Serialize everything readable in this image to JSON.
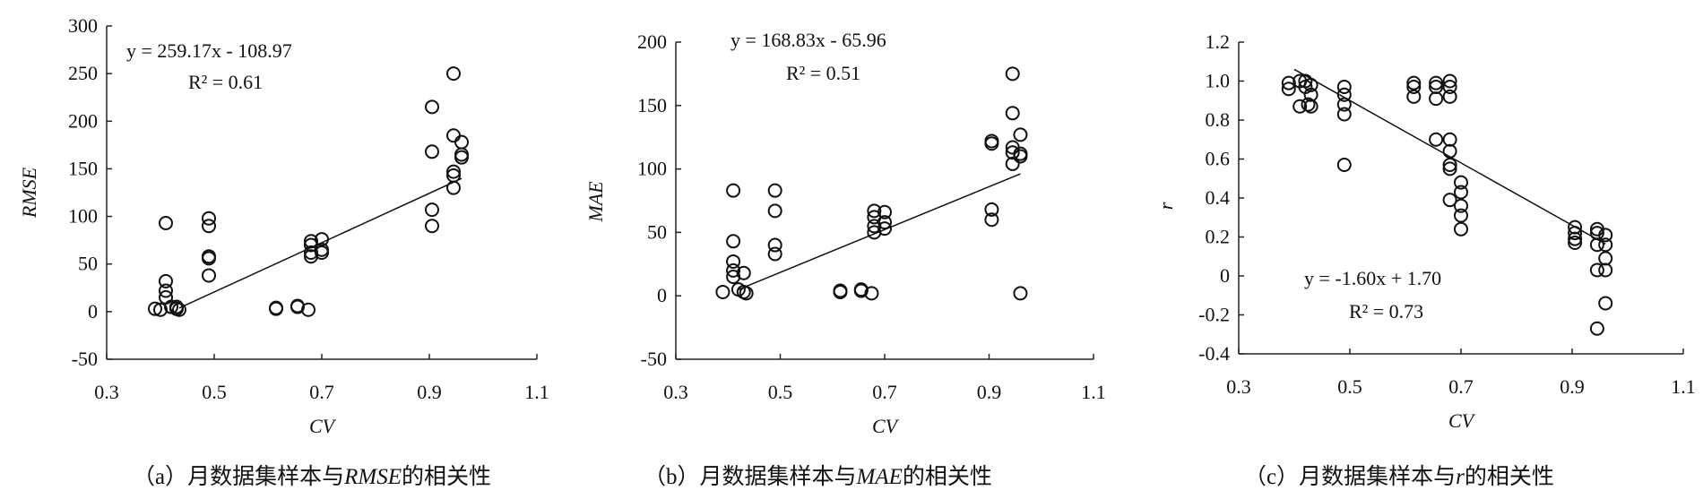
{
  "chart_data": [
    {
      "type": "scatter",
      "caption_prefix": "（a）月数据集样本与",
      "caption_var": "RMSE",
      "caption_suffix": "的相关性",
      "xlabel": "CV",
      "ylabel": "RMSE",
      "xlim": [
        0.3,
        1.1
      ],
      "ylim": [
        -50,
        300
      ],
      "xticks": [
        "0.3",
        "0.5",
        "0.7",
        "0.9",
        "1.1"
      ],
      "yticks": [
        "-50",
        "0",
        "50",
        "100",
        "150",
        "200",
        "250",
        "300"
      ],
      "equation": "y = 259.17x - 108.97",
      "r2": "R² = 0.61",
      "trend": {
        "slope": 259.17,
        "intercept": -108.97,
        "x_range": [
          0.435,
          0.96
        ]
      },
      "points": [
        [
          0.39,
          3
        ],
        [
          0.4,
          2
        ],
        [
          0.41,
          93
        ],
        [
          0.41,
          32
        ],
        [
          0.41,
          22
        ],
        [
          0.41,
          15
        ],
        [
          0.42,
          5
        ],
        [
          0.43,
          3
        ],
        [
          0.43,
          5
        ],
        [
          0.435,
          2
        ],
        [
          0.49,
          98
        ],
        [
          0.49,
          90
        ],
        [
          0.49,
          58
        ],
        [
          0.49,
          56
        ],
        [
          0.49,
          38
        ],
        [
          0.615,
          3
        ],
        [
          0.615,
          4
        ],
        [
          0.655,
          5
        ],
        [
          0.655,
          6
        ],
        [
          0.675,
          2
        ],
        [
          0.68,
          74
        ],
        [
          0.68,
          70
        ],
        [
          0.68,
          62
        ],
        [
          0.68,
          58
        ],
        [
          0.7,
          76
        ],
        [
          0.7,
          65
        ],
        [
          0.7,
          62
        ],
        [
          0.905,
          215
        ],
        [
          0.905,
          168
        ],
        [
          0.905,
          107
        ],
        [
          0.905,
          90
        ],
        [
          0.945,
          250
        ],
        [
          0.945,
          185
        ],
        [
          0.945,
          147
        ],
        [
          0.945,
          143
        ],
        [
          0.945,
          130
        ],
        [
          0.96,
          178
        ],
        [
          0.96,
          165
        ],
        [
          0.96,
          162
        ]
      ]
    },
    {
      "type": "scatter",
      "caption_prefix": "（b）月数据集样本与",
      "caption_var": "MAE",
      "caption_suffix": "的相关性",
      "xlabel": "CV",
      "ylabel": "MAE",
      "xlim": [
        0.3,
        1.1
      ],
      "ylim": [
        -50,
        200
      ],
      "xticks": [
        "0.3",
        "0.5",
        "0.7",
        "0.9",
        "1.1"
      ],
      "yticks": [
        "-50",
        "0",
        "50",
        "100",
        "150",
        "200"
      ],
      "equation": "y = 168.83x - 65.96",
      "r2": "R² = 0.51",
      "trend": {
        "slope": 168.83,
        "intercept": -65.96,
        "x_range": [
          0.42,
          0.96
        ]
      },
      "points": [
        [
          0.39,
          3
        ],
        [
          0.41,
          83
        ],
        [
          0.41,
          43
        ],
        [
          0.41,
          27
        ],
        [
          0.41,
          20
        ],
        [
          0.41,
          15
        ],
        [
          0.42,
          5
        ],
        [
          0.43,
          3
        ],
        [
          0.43,
          18
        ],
        [
          0.435,
          2
        ],
        [
          0.49,
          83
        ],
        [
          0.49,
          67
        ],
        [
          0.49,
          40
        ],
        [
          0.49,
          33
        ],
        [
          0.615,
          3
        ],
        [
          0.615,
          4
        ],
        [
          0.655,
          5
        ],
        [
          0.655,
          4
        ],
        [
          0.675,
          2
        ],
        [
          0.68,
          67
        ],
        [
          0.68,
          62
        ],
        [
          0.68,
          55
        ],
        [
          0.68,
          50
        ],
        [
          0.7,
          66
        ],
        [
          0.7,
          58
        ],
        [
          0.7,
          53
        ],
        [
          0.905,
          122
        ],
        [
          0.905,
          120
        ],
        [
          0.905,
          68
        ],
        [
          0.905,
          60
        ],
        [
          0.945,
          175
        ],
        [
          0.945,
          144
        ],
        [
          0.945,
          117
        ],
        [
          0.945,
          113
        ],
        [
          0.945,
          104
        ],
        [
          0.96,
          127
        ],
        [
          0.96,
          112
        ],
        [
          0.96,
          110
        ],
        [
          0.96,
          2
        ]
      ]
    },
    {
      "type": "scatter",
      "caption_prefix": "（c）月数据集样本与",
      "caption_var": "r",
      "caption_suffix": "的相关性",
      "xlabel": "CV",
      "ylabel": "r",
      "xlim": [
        0.3,
        1.1
      ],
      "ylim": [
        -0.4,
        1.2
      ],
      "xticks": [
        "0.3",
        "0.5",
        "0.7",
        "0.9",
        "1.1"
      ],
      "yticks": [
        "-0.4",
        "-0.2",
        "0",
        "0.2",
        "0.4",
        "0.6",
        "0.8",
        "1.0",
        "1.2"
      ],
      "equation": "y = -1.60x + 1.70",
      "r2": "R² = 0.73",
      "trend": {
        "slope": -1.6,
        "intercept": 1.7,
        "x_range": [
          0.4,
          0.96
        ]
      },
      "points": [
        [
          0.39,
          0.99
        ],
        [
          0.39,
          0.96
        ],
        [
          0.41,
          1.0
        ],
        [
          0.41,
          0.87
        ],
        [
          0.42,
          1.0
        ],
        [
          0.42,
          0.97
        ],
        [
          0.425,
          0.88
        ],
        [
          0.43,
          0.93
        ],
        [
          0.43,
          0.87
        ],
        [
          0.43,
          0.98
        ],
        [
          0.49,
          0.97
        ],
        [
          0.49,
          0.93
        ],
        [
          0.49,
          0.88
        ],
        [
          0.49,
          0.83
        ],
        [
          0.49,
          0.57
        ],
        [
          0.615,
          0.99
        ],
        [
          0.615,
          0.97
        ],
        [
          0.615,
          0.92
        ],
        [
          0.655,
          0.99
        ],
        [
          0.655,
          0.97
        ],
        [
          0.655,
          0.91
        ],
        [
          0.655,
          0.7
        ],
        [
          0.68,
          1.0
        ],
        [
          0.68,
          0.97
        ],
        [
          0.68,
          0.92
        ],
        [
          0.68,
          0.7
        ],
        [
          0.68,
          0.64
        ],
        [
          0.68,
          0.57
        ],
        [
          0.68,
          0.55
        ],
        [
          0.68,
          0.39
        ],
        [
          0.7,
          0.48
        ],
        [
          0.7,
          0.43
        ],
        [
          0.7,
          0.36
        ],
        [
          0.7,
          0.31
        ],
        [
          0.7,
          0.24
        ],
        [
          0.905,
          0.25
        ],
        [
          0.905,
          0.22
        ],
        [
          0.905,
          0.19
        ],
        [
          0.905,
          0.17
        ],
        [
          0.945,
          0.24
        ],
        [
          0.945,
          0.22
        ],
        [
          0.945,
          0.16
        ],
        [
          0.945,
          0.03
        ],
        [
          0.945,
          -0.27
        ],
        [
          0.96,
          0.21
        ],
        [
          0.96,
          0.16
        ],
        [
          0.96,
          0.09
        ],
        [
          0.96,
          0.03
        ],
        [
          0.96,
          -0.14
        ]
      ]
    }
  ]
}
